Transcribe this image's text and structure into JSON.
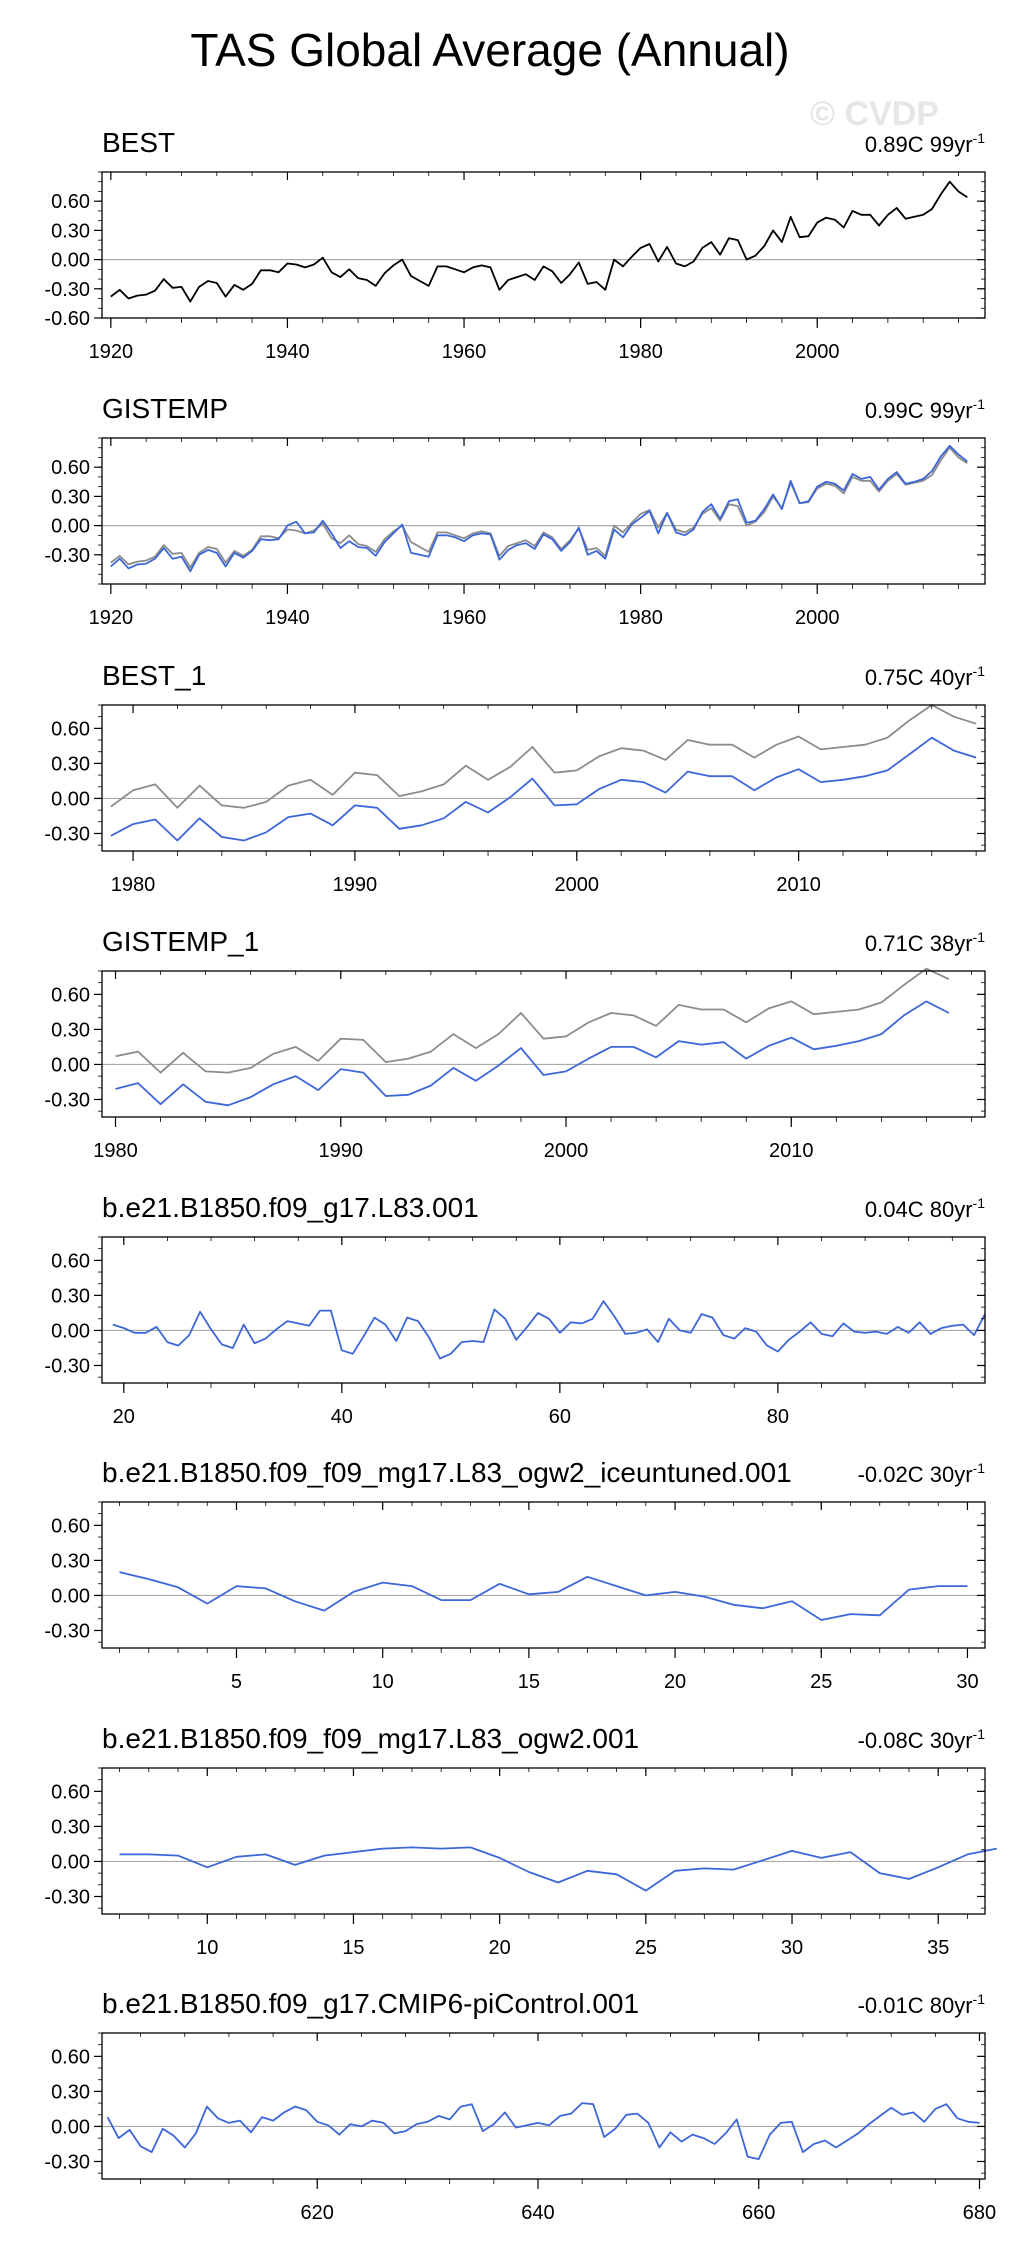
{
  "title": "TAS Global Average (Annual)",
  "watermark": "© CVDP",
  "colors": {
    "primary": "#3d67d8",
    "reference": "#8c8c8c",
    "obs": "#000000",
    "zero": "#aaaaaa",
    "frame": "#000000"
  },
  "chart_data": [
    {
      "type": "line",
      "title": "BEST",
      "trend_value": "0.89C 99yr",
      "trend_exp": "-1",
      "xlim": [
        1919,
        2019
      ],
      "ylim": [
        -0.6,
        0.9
      ],
      "xticks": [
        1920,
        1940,
        1960,
        1980,
        2000
      ],
      "yticks": [
        0.6,
        0.3,
        0.0,
        -0.3,
        -0.6
      ],
      "ytick_labels": [
        "0.60",
        "0.30",
        "0.00",
        "-0.30",
        "-0.60"
      ],
      "series": [
        {
          "name": "BEST",
          "style": "obs",
          "x_start": 1920,
          "values": [
            -0.38,
            -0.31,
            -0.4,
            -0.37,
            -0.36,
            -0.32,
            -0.2,
            -0.29,
            -0.28,
            -0.43,
            -0.28,
            -0.22,
            -0.24,
            -0.38,
            -0.26,
            -0.31,
            -0.25,
            -0.11,
            -0.11,
            -0.13,
            -0.04,
            -0.05,
            -0.08,
            -0.05,
            0.02,
            -0.13,
            -0.18,
            -0.1,
            -0.19,
            -0.21,
            -0.27,
            -0.14,
            -0.06,
            0.0,
            -0.17,
            -0.22,
            -0.27,
            -0.07,
            -0.07,
            -0.1,
            -0.13,
            -0.08,
            -0.06,
            -0.08,
            -0.31,
            -0.21,
            -0.18,
            -0.15,
            -0.21,
            -0.07,
            -0.12,
            -0.24,
            -0.15,
            -0.03,
            -0.25,
            -0.23,
            -0.31,
            0.0,
            -0.07,
            0.03,
            0.12,
            0.16,
            -0.02,
            0.13,
            -0.04,
            -0.07,
            -0.02,
            0.12,
            0.18,
            0.05,
            0.22,
            0.2,
            0.0,
            0.04,
            0.14,
            0.3,
            0.18,
            0.44,
            0.23,
            0.24,
            0.38,
            0.43,
            0.41,
            0.33,
            0.5,
            0.46,
            0.46,
            0.35,
            0.46,
            0.53,
            0.42,
            0.44,
            0.46,
            0.52,
            0.67,
            0.8,
            0.7,
            0.64
          ]
        }
      ]
    },
    {
      "type": "line",
      "title": "GISTEMP",
      "trend_value": "0.99C 99yr",
      "trend_exp": "-1",
      "xlim": [
        1919,
        2019
      ],
      "ylim": [
        -0.6,
        0.9
      ],
      "xticks": [
        1920,
        1940,
        1960,
        1980,
        2000
      ],
      "yticks": [
        0.6,
        0.3,
        0.0,
        -0.3
      ],
      "ytick_labels": [
        "0.60",
        "0.30",
        "0.00",
        "-0.30"
      ],
      "series": [
        {
          "name": "BEST",
          "style": "reference",
          "x_start": 1920,
          "values": [
            -0.38,
            -0.31,
            -0.4,
            -0.37,
            -0.36,
            -0.32,
            -0.2,
            -0.29,
            -0.28,
            -0.43,
            -0.28,
            -0.22,
            -0.24,
            -0.38,
            -0.26,
            -0.31,
            -0.25,
            -0.11,
            -0.11,
            -0.13,
            -0.04,
            -0.05,
            -0.08,
            -0.05,
            0.02,
            -0.13,
            -0.18,
            -0.1,
            -0.19,
            -0.21,
            -0.27,
            -0.14,
            -0.06,
            0.0,
            -0.17,
            -0.22,
            -0.27,
            -0.07,
            -0.07,
            -0.1,
            -0.13,
            -0.08,
            -0.06,
            -0.08,
            -0.31,
            -0.21,
            -0.18,
            -0.15,
            -0.21,
            -0.07,
            -0.12,
            -0.24,
            -0.15,
            -0.03,
            -0.25,
            -0.23,
            -0.31,
            0.0,
            -0.07,
            0.03,
            0.12,
            0.16,
            -0.02,
            0.13,
            -0.04,
            -0.07,
            -0.02,
            0.12,
            0.18,
            0.05,
            0.22,
            0.2,
            0.0,
            0.04,
            0.14,
            0.3,
            0.18,
            0.44,
            0.23,
            0.24,
            0.38,
            0.43,
            0.41,
            0.33,
            0.5,
            0.46,
            0.46,
            0.35,
            0.46,
            0.53,
            0.42,
            0.44,
            0.46,
            0.52,
            0.67,
            0.8,
            0.7,
            0.64
          ]
        },
        {
          "name": "GISTEMP",
          "style": "primary",
          "x_start": 1920,
          "values": [
            -0.42,
            -0.34,
            -0.44,
            -0.4,
            -0.39,
            -0.34,
            -0.23,
            -0.34,
            -0.32,
            -0.47,
            -0.3,
            -0.25,
            -0.28,
            -0.42,
            -0.28,
            -0.33,
            -0.26,
            -0.14,
            -0.15,
            -0.14,
            0.0,
            0.04,
            -0.08,
            -0.07,
            0.05,
            -0.08,
            -0.23,
            -0.16,
            -0.22,
            -0.23,
            -0.31,
            -0.17,
            -0.08,
            0.01,
            -0.28,
            -0.3,
            -0.32,
            -0.1,
            -0.1,
            -0.12,
            -0.16,
            -0.1,
            -0.08,
            -0.09,
            -0.35,
            -0.25,
            -0.2,
            -0.18,
            -0.24,
            -0.09,
            -0.14,
            -0.26,
            -0.17,
            -0.02,
            -0.3,
            -0.26,
            -0.34,
            -0.04,
            -0.12,
            0.01,
            0.08,
            0.15,
            -0.08,
            0.13,
            -0.07,
            -0.1,
            -0.04,
            0.14,
            0.22,
            0.07,
            0.25,
            0.27,
            0.03,
            0.05,
            0.17,
            0.32,
            0.17,
            0.46,
            0.23,
            0.25,
            0.4,
            0.45,
            0.43,
            0.36,
            0.53,
            0.48,
            0.5,
            0.37,
            0.48,
            0.55,
            0.43,
            0.45,
            0.48,
            0.56,
            0.71,
            0.82,
            0.73,
            0.66
          ]
        }
      ]
    },
    {
      "type": "line",
      "title": "BEST_1",
      "trend_value": "0.75C 40yr",
      "trend_exp": "-1",
      "xlim": [
        1978.6,
        2018.4
      ],
      "ylim": [
        -0.45,
        0.8
      ],
      "xticks": [
        1980,
        1990,
        2000,
        2010
      ],
      "yticks": [
        0.6,
        0.3,
        0.0,
        -0.3
      ],
      "ytick_labels": [
        "0.60",
        "0.30",
        "0.00",
        "-0.30"
      ],
      "series": [
        {
          "name": "BEST",
          "style": "reference",
          "x_start": 1979,
          "values": [
            -0.07,
            0.07,
            0.12,
            -0.08,
            0.11,
            -0.06,
            -0.08,
            -0.03,
            0.11,
            0.16,
            0.03,
            0.22,
            0.2,
            0.02,
            0.06,
            0.12,
            0.28,
            0.16,
            0.27,
            0.44,
            0.22,
            0.24,
            0.36,
            0.43,
            0.41,
            0.33,
            0.5,
            0.46,
            0.46,
            0.35,
            0.46,
            0.53,
            0.42,
            0.44,
            0.46,
            0.52,
            0.67,
            0.8,
            0.7,
            0.64
          ]
        },
        {
          "name": "BEST_1",
          "style": "primary",
          "x_start": 1979,
          "values": [
            -0.32,
            -0.22,
            -0.18,
            -0.36,
            -0.17,
            -0.33,
            -0.36,
            -0.29,
            -0.16,
            -0.13,
            -0.23,
            -0.06,
            -0.08,
            -0.26,
            -0.23,
            -0.17,
            -0.03,
            -0.12,
            0.01,
            0.17,
            -0.06,
            -0.05,
            0.08,
            0.16,
            0.14,
            0.05,
            0.23,
            0.19,
            0.19,
            0.07,
            0.18,
            0.25,
            0.14,
            0.16,
            0.19,
            0.24,
            0.38,
            0.52,
            0.41,
            0.35
          ]
        }
      ]
    },
    {
      "type": "line",
      "title": "GISTEMP_1",
      "trend_value": "0.71C 38yr",
      "trend_exp": "-1",
      "xlim": [
        1979.4,
        2018.6
      ],
      "ylim": [
        -0.45,
        0.8
      ],
      "xticks": [
        1980,
        1990,
        2000,
        2010
      ],
      "yticks": [
        0.6,
        0.3,
        0.0,
        -0.3
      ],
      "ytick_labels": [
        "0.60",
        "0.30",
        "0.00",
        "-0.30"
      ],
      "series": [
        {
          "name": "GISTEMP",
          "style": "reference",
          "x_start": 1980,
          "values": [
            0.07,
            0.11,
            -0.07,
            0.1,
            -0.06,
            -0.07,
            -0.03,
            0.09,
            0.15,
            0.03,
            0.22,
            0.21,
            0.02,
            0.05,
            0.11,
            0.26,
            0.14,
            0.26,
            0.44,
            0.22,
            0.24,
            0.36,
            0.44,
            0.42,
            0.33,
            0.51,
            0.47,
            0.47,
            0.36,
            0.48,
            0.54,
            0.43,
            0.45,
            0.47,
            0.53,
            0.68,
            0.82,
            0.73
          ]
        },
        {
          "name": "GISTEMP_1",
          "style": "primary",
          "x_start": 1980,
          "values": [
            -0.21,
            -0.16,
            -0.34,
            -0.17,
            -0.32,
            -0.35,
            -0.28,
            -0.17,
            -0.1,
            -0.22,
            -0.04,
            -0.07,
            -0.27,
            -0.26,
            -0.18,
            -0.03,
            -0.14,
            -0.01,
            0.14,
            -0.09,
            -0.06,
            0.05,
            0.15,
            0.15,
            0.06,
            0.2,
            0.17,
            0.19,
            0.05,
            0.16,
            0.23,
            0.13,
            0.16,
            0.2,
            0.26,
            0.42,
            0.54,
            0.44
          ]
        }
      ]
    },
    {
      "type": "line",
      "title": "b.e21.B1850.f09_g17.L83.001",
      "trend_value": "0.04C 80yr",
      "trend_exp": "-1",
      "xlim": [
        18,
        99
      ],
      "ylim": [
        -0.45,
        0.8
      ],
      "xticks": [
        20,
        40,
        60,
        80
      ],
      "yticks": [
        0.6,
        0.3,
        0.0,
        -0.3
      ],
      "ytick_labels": [
        "0.60",
        "0.30",
        "0.00",
        "-0.30"
      ],
      "series": [
        {
          "name": "b.e21.B1850.f09_g17.L83.001",
          "style": "primary",
          "x_start": 19,
          "values": [
            0.05,
            0.02,
            -0.02,
            -0.02,
            0.03,
            -0.1,
            -0.13,
            -0.04,
            0.16,
            0.01,
            -0.12,
            -0.15,
            0.05,
            -0.11,
            -0.07,
            0.01,
            0.08,
            0.06,
            0.04,
            0.17,
            0.17,
            -0.17,
            -0.2,
            -0.05,
            0.11,
            0.05,
            -0.09,
            0.11,
            0.08,
            -0.06,
            -0.24,
            -0.2,
            -0.1,
            -0.09,
            -0.1,
            0.18,
            0.1,
            -0.08,
            0.03,
            0.15,
            0.1,
            -0.02,
            0.07,
            0.06,
            0.1,
            0.25,
            0.12,
            -0.03,
            -0.02,
            0.01,
            -0.1,
            0.1,
            0.0,
            -0.02,
            0.14,
            0.11,
            -0.04,
            -0.07,
            0.02,
            -0.01,
            -0.13,
            -0.18,
            -0.08,
            -0.01,
            0.07,
            -0.03,
            -0.05,
            0.06,
            -0.01,
            -0.02,
            -0.01,
            -0.03,
            0.03,
            -0.02,
            0.07,
            -0.03,
            0.02,
            0.04,
            0.05,
            -0.04,
            0.14
          ]
        }
      ]
    },
    {
      "type": "line",
      "title": "b.e21.B1850.f09_f09_mg17.L83_ogw2_iceuntuned.001",
      "trend_value": "-0.02C 30yr",
      "trend_exp": "-1",
      "xlim": [
        0.4,
        30.6
      ],
      "ylim": [
        -0.45,
        0.8
      ],
      "xticks": [
        5,
        10,
        15,
        20,
        25,
        30
      ],
      "yticks": [
        0.6,
        0.3,
        0.0,
        -0.3
      ],
      "ytick_labels": [
        "0.60",
        "0.30",
        "0.00",
        "-0.30"
      ],
      "series": [
        {
          "name": "b.e21.B1850.f09_f09_mg17.L83_ogw2_iceuntuned.001",
          "style": "primary",
          "x_start": 1,
          "values": [
            0.2,
            0.14,
            0.07,
            -0.07,
            0.08,
            0.06,
            -0.05,
            -0.13,
            0.03,
            0.11,
            0.08,
            -0.04,
            -0.04,
            0.1,
            0.01,
            0.03,
            0.16,
            0.08,
            0.0,
            0.03,
            -0.01,
            -0.08,
            -0.11,
            -0.05,
            -0.21,
            -0.16,
            -0.17,
            0.05,
            0.08,
            0.08
          ]
        }
      ]
    },
    {
      "type": "line",
      "title": "b.e21.B1850.f09_f09_mg17.L83_ogw2.001",
      "trend_value": "-0.08C 30yr",
      "trend_exp": "-1",
      "xlim": [
        6.4,
        36.6
      ],
      "ylim": [
        -0.45,
        0.8
      ],
      "xticks": [
        10,
        15,
        20,
        25,
        30,
        35
      ],
      "yticks": [
        0.6,
        0.3,
        0.0,
        -0.3
      ],
      "ytick_labels": [
        "0.60",
        "0.30",
        "0.00",
        "-0.30"
      ],
      "series": [
        {
          "name": "b.e21.B1850.f09_f09_mg17.L83_ogw2.001",
          "style": "primary",
          "x_start": 7,
          "values": [
            0.06,
            0.06,
            0.05,
            -0.05,
            0.04,
            0.06,
            -0.03,
            0.05,
            0.08,
            0.11,
            0.12,
            0.11,
            0.12,
            0.03,
            -0.09,
            -0.18,
            -0.08,
            -0.11,
            -0.25,
            -0.08,
            -0.06,
            -0.07,
            0.01,
            0.09,
            0.03,
            0.08,
            -0.1,
            -0.15,
            -0.05,
            0.06,
            0.11
          ]
        }
      ]
    },
    {
      "type": "line",
      "title": "b.e21.B1850.f09_g17.CMIP6-piControl.001",
      "trend_value": "-0.01C 80yr",
      "trend_exp": "-1",
      "xlim": [
        600.5,
        680.5
      ],
      "ylim": [
        -0.45,
        0.8
      ],
      "xticks": [
        620,
        640,
        660,
        680
      ],
      "yticks": [
        0.6,
        0.3,
        0.0,
        -0.3
      ],
      "ytick_labels": [
        "0.60",
        "0.30",
        "0.00",
        "-0.30"
      ],
      "series": [
        {
          "name": "b.e21.B1850.f09_g17.CMIP6-piControl.001",
          "style": "primary",
          "x_start": 601,
          "values": [
            0.08,
            -0.1,
            -0.03,
            -0.17,
            -0.22,
            -0.02,
            -0.08,
            -0.18,
            -0.06,
            0.17,
            0.07,
            0.03,
            0.05,
            -0.05,
            0.08,
            0.05,
            0.12,
            0.17,
            0.14,
            0.04,
            0.01,
            -0.07,
            0.02,
            0.0,
            0.05,
            0.03,
            -0.06,
            -0.04,
            0.02,
            0.04,
            0.09,
            0.06,
            0.17,
            0.19,
            -0.04,
            0.02,
            0.12,
            -0.01,
            0.01,
            0.03,
            0.01,
            0.09,
            0.11,
            0.2,
            0.19,
            -0.09,
            -0.02,
            0.1,
            0.11,
            0.03,
            -0.18,
            -0.05,
            -0.13,
            -0.07,
            -0.1,
            -0.15,
            -0.06,
            0.06,
            -0.26,
            -0.28,
            -0.07,
            0.03,
            0.04,
            -0.22,
            -0.15,
            -0.12,
            -0.18,
            -0.12,
            -0.06,
            0.02,
            0.09,
            0.16,
            0.1,
            0.12,
            0.04,
            0.15,
            0.19,
            0.07,
            0.04,
            0.03
          ]
        }
      ]
    }
  ]
}
